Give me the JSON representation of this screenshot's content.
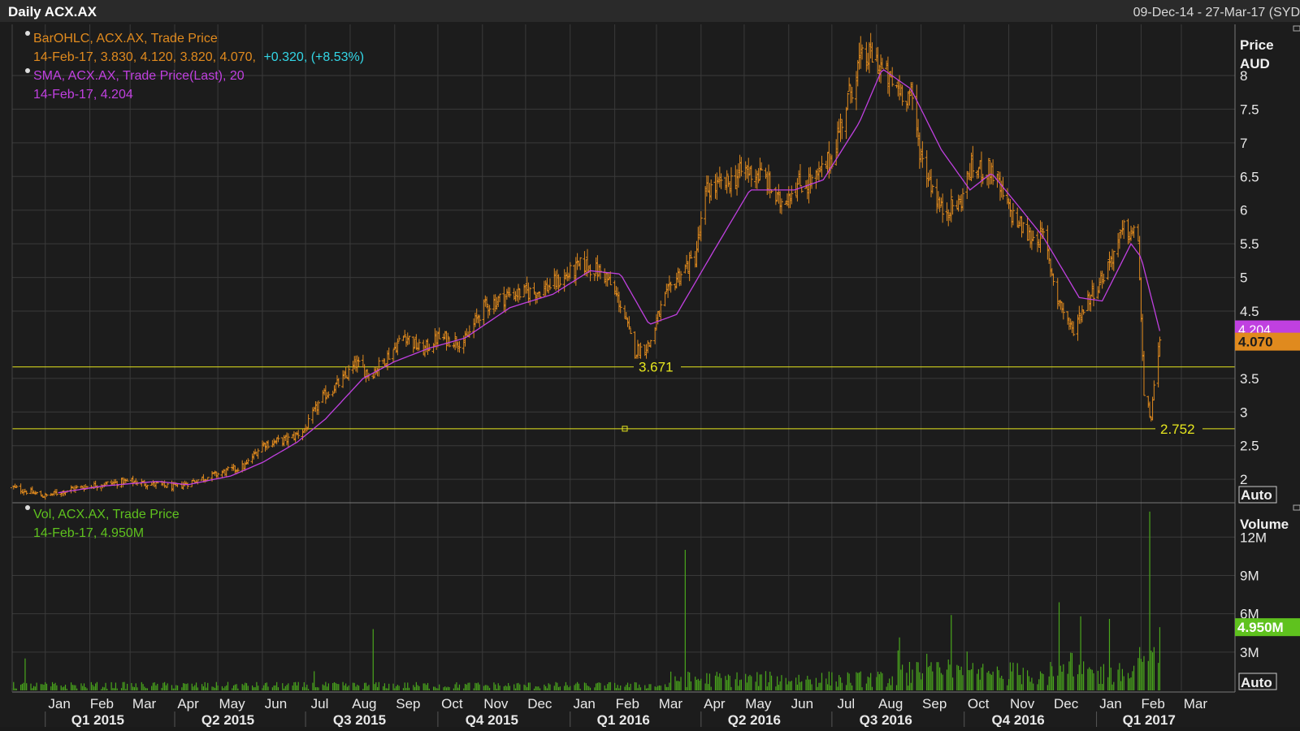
{
  "header": {
    "title": "Daily ACX.AX",
    "date_range": "09-Dec-14 - 27-Mar-17 (SYD"
  },
  "colors": {
    "background": "#1c1c1c",
    "grid": "#3a3a3a",
    "price_bars": "#e08a1e",
    "sma": "#c040e0",
    "volume": "#4aa61c",
    "hline": "#e6e61e",
    "change": "#33d6e6",
    "axis_text": "#e8e8e8"
  },
  "legend": {
    "ohlc_name": "BarOHLC, ACX.AX, Trade Price",
    "ohlc_values": "14-Feb-17, 3.830, 4.120, 3.820, 4.070,",
    "ohlc_change": "+0.320, (+8.53%)",
    "sma_name": "SMA, ACX.AX, Trade Price(Last),  20",
    "sma_values": "14-Feb-17, 4.204",
    "vol_name": "Vol, ACX.AX, Trade Price",
    "vol_values": "14-Feb-17, 4.950M"
  },
  "price_axis": {
    "title_1": "Price",
    "title_2": "AUD",
    "ticks": [
      "2",
      "2.5",
      "3",
      "3.5",
      "4.5",
      "5",
      "5.5",
      "6",
      "6.5",
      "7",
      "7.5",
      "8"
    ],
    "auto_label": "Auto",
    "sma_badge": "4.204",
    "last_badge": "4.070"
  },
  "volume_axis": {
    "title": "Volume",
    "ticks": [
      "3M",
      "6M",
      "9M",
      "12M"
    ],
    "auto_label": "Auto",
    "last_badge": "4.950M"
  },
  "hlines": {
    "upper_label": "3.671",
    "lower_label": "2.752"
  },
  "x_axis": {
    "months": [
      "Jan",
      "Feb",
      "Mar",
      "Apr",
      "May",
      "Jun",
      "Jul",
      "Aug",
      "Sep",
      "Oct",
      "Nov",
      "Dec",
      "Jan",
      "Feb",
      "Mar",
      "Apr",
      "May",
      "Jun",
      "Jul",
      "Aug",
      "Sep",
      "Oct",
      "Nov",
      "Dec",
      "Jan",
      "Feb",
      "Mar"
    ],
    "quarters": [
      "Q1 2015",
      "Q2 2015",
      "Q3 2015",
      "Q4 2015",
      "Q1 2016",
      "Q2 2016",
      "Q3 2016",
      "Q4 2016",
      "Q1 2017"
    ]
  },
  "chart_data": [
    {
      "type": "ohlc",
      "title": "Daily ACX.AX",
      "ylabel": "Price AUD",
      "ylim": [
        1.7,
        8.7
      ],
      "x_range": [
        "09-Dec-14",
        "27-Mar-17"
      ],
      "last_bar": {
        "date": "14-Feb-17",
        "open": 3.83,
        "high": 4.12,
        "low": 3.82,
        "close": 4.07,
        "change": 0.32,
        "change_pct": 8.53
      },
      "close_anchors": [
        [
          "2014-12-09",
          1.88
        ],
        [
          "2015-01-01",
          1.75
        ],
        [
          "2015-01-20",
          1.86
        ],
        [
          "2015-02-10",
          1.93
        ],
        [
          "2015-03-01",
          1.97
        ],
        [
          "2015-03-20",
          1.92
        ],
        [
          "2015-04-01",
          1.88
        ],
        [
          "2015-04-15",
          1.98
        ],
        [
          "2015-05-01",
          2.08
        ],
        [
          "2015-05-20",
          2.2
        ],
        [
          "2015-06-01",
          2.52
        ],
        [
          "2015-06-20",
          2.6
        ],
        [
          "2015-07-01",
          2.75
        ],
        [
          "2015-07-12",
          3.2
        ],
        [
          "2015-07-28",
          3.5
        ],
        [
          "2015-08-05",
          3.72
        ],
        [
          "2015-08-15",
          3.55
        ],
        [
          "2015-08-28",
          3.85
        ],
        [
          "2015-09-08",
          4.15
        ],
        [
          "2015-09-20",
          3.9
        ],
        [
          "2015-10-01",
          4.1
        ],
        [
          "2015-10-20",
          4.05
        ],
        [
          "2015-11-01",
          4.55
        ],
        [
          "2015-11-20",
          4.75
        ],
        [
          "2015-12-10",
          4.8
        ],
        [
          "2015-12-25",
          4.95
        ],
        [
          "2016-01-10",
          5.2
        ],
        [
          "2016-01-25",
          5.05
        ],
        [
          "2016-02-05",
          4.6
        ],
        [
          "2016-02-15",
          3.9
        ],
        [
          "2016-02-25",
          4.0
        ],
        [
          "2016-03-05",
          4.6
        ],
        [
          "2016-03-15",
          5.0
        ],
        [
          "2016-03-28",
          5.3
        ],
        [
          "2016-04-05",
          6.3
        ],
        [
          "2016-04-20",
          6.4
        ],
        [
          "2016-05-01",
          6.6
        ],
        [
          "2016-05-15",
          6.5
        ],
        [
          "2016-05-25",
          6.1
        ],
        [
          "2016-06-05",
          6.35
        ],
        [
          "2016-06-20",
          6.45
        ],
        [
          "2016-07-01",
          6.8
        ],
        [
          "2016-07-10",
          7.5
        ],
        [
          "2016-07-20",
          8.2
        ],
        [
          "2016-07-30",
          8.3
        ],
        [
          "2016-08-10",
          7.9
        ],
        [
          "2016-08-25",
          7.7
        ],
        [
          "2016-09-01",
          6.8
        ],
        [
          "2016-09-15",
          6.0
        ],
        [
          "2016-09-28",
          6.1
        ],
        [
          "2016-10-05",
          6.6
        ],
        [
          "2016-10-20",
          6.6
        ],
        [
          "2016-11-01",
          6.0
        ],
        [
          "2016-11-15",
          5.6
        ],
        [
          "2016-11-25",
          5.6
        ],
        [
          "2016-12-05",
          4.7
        ],
        [
          "2016-12-15",
          4.2
        ],
        [
          "2016-12-25",
          4.65
        ],
        [
          "2017-01-05",
          5.0
        ],
        [
          "2017-01-20",
          5.7
        ],
        [
          "2017-01-30",
          5.6
        ],
        [
          "2017-02-03",
          3.2
        ],
        [
          "2017-02-08",
          2.95
        ],
        [
          "2017-02-14",
          4.07
        ]
      ],
      "sma_20_anchors": [
        [
          "2015-01-10",
          1.8
        ],
        [
          "2015-02-10",
          1.9
        ],
        [
          "2015-03-20",
          1.97
        ],
        [
          "2015-04-10",
          1.92
        ],
        [
          "2015-05-10",
          2.05
        ],
        [
          "2015-06-01",
          2.25
        ],
        [
          "2015-06-25",
          2.55
        ],
        [
          "2015-07-15",
          2.9
        ],
        [
          "2015-08-10",
          3.5
        ],
        [
          "2015-09-01",
          3.75
        ],
        [
          "2015-09-25",
          3.95
        ],
        [
          "2015-10-20",
          4.1
        ],
        [
          "2015-11-20",
          4.55
        ],
        [
          "2015-12-20",
          4.75
        ],
        [
          "2016-01-15",
          5.1
        ],
        [
          "2016-02-05",
          5.05
        ],
        [
          "2016-02-25",
          4.3
        ],
        [
          "2016-03-15",
          4.45
        ],
        [
          "2016-04-10",
          5.4
        ],
        [
          "2016-05-05",
          6.3
        ],
        [
          "2016-06-05",
          6.3
        ],
        [
          "2016-06-25",
          6.45
        ],
        [
          "2016-07-20",
          7.3
        ],
        [
          "2016-08-05",
          8.1
        ],
        [
          "2016-08-25",
          7.8
        ],
        [
          "2016-09-15",
          6.9
        ],
        [
          "2016-10-05",
          6.3
        ],
        [
          "2016-10-20",
          6.55
        ],
        [
          "2016-11-10",
          6.0
        ],
        [
          "2016-11-25",
          5.6
        ],
        [
          "2016-12-20",
          4.7
        ],
        [
          "2017-01-05",
          4.65
        ],
        [
          "2017-01-25",
          5.5
        ],
        [
          "2017-02-01",
          5.3
        ],
        [
          "2017-02-14",
          4.204
        ]
      ],
      "horizontal_lines": [
        3.671,
        2.752
      ]
    },
    {
      "type": "bar",
      "title": "Vol, ACX.AX, Trade Price",
      "ylabel": "Volume",
      "unit": "M",
      "ylim": [
        0,
        14.5
      ],
      "last_value": 4.95,
      "spikes": [
        [
          "2014-12-18",
          2.5
        ],
        [
          "2015-08-17",
          4.8
        ],
        [
          "2015-07-07",
          1.5
        ],
        [
          "2016-03-21",
          11.0
        ],
        [
          "2016-09-22",
          5.9
        ],
        [
          "2017-01-10",
          5.6
        ],
        [
          "2016-12-06",
          6.9
        ],
        [
          "2016-12-21",
          5.8
        ],
        [
          "2017-02-07",
          14.0
        ],
        [
          "2017-02-14",
          4.95
        ]
      ]
    }
  ]
}
